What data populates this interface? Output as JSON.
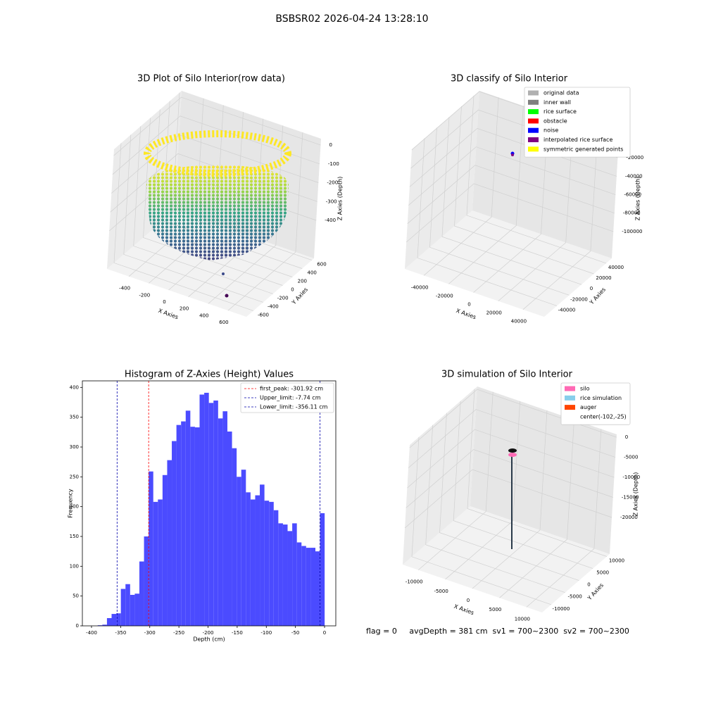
{
  "title": "BSBSR02 2026-04-24 13:28:10",
  "chart_data": [
    {
      "type": "scatter3d",
      "title": "3D Plot of Silo Interior(row data)",
      "xlabel": "X Axies",
      "ylabel": "Y Axies",
      "zlabel": "Z Axies (Depth)",
      "xlim": [
        -621,
        785
      ],
      "xticks": [
        -400,
        -200,
        0,
        200,
        400,
        600
      ],
      "ylim": [
        -744,
        643
      ],
      "yticks": [
        -600,
        -400,
        -200,
        0,
        200,
        400,
        600
      ],
      "zlim": [
        -602,
        34
      ],
      "zticks": [
        -400,
        -300,
        -200,
        -100,
        0
      ]
    },
    {
      "type": "scatter3d",
      "title": "3D classify of Silo Interior",
      "xlabel": "X Axies",
      "ylabel": "Y Axies",
      "zlabel": "Z Axies (Depth)",
      "xlim": [
        -55400,
        57100
      ],
      "xticks": [
        -40000,
        -20000,
        0,
        20000,
        40000
      ],
      "ylim": [
        -60570,
        49130
      ],
      "yticks": [
        -40000,
        -20000,
        0,
        20000,
        40000
      ],
      "zlim": [
        -129100,
        800
      ],
      "zticks": [
        -100000,
        -80000,
        -60000,
        -40000,
        -20000,
        0
      ],
      "legend": [
        {
          "name": "original data",
          "color": "#b0b0b0"
        },
        {
          "name": "inner wall",
          "color": "#808080"
        },
        {
          "name": "rice surface",
          "color": "#00ff00"
        },
        {
          "name": "obstacle",
          "color": "#ff0000"
        },
        {
          "name": "noise",
          "color": "#0000ff"
        },
        {
          "name": "interpolated rice surface",
          "color": "#800080"
        },
        {
          "name": "symmetric generated points",
          "color": "#ffff00"
        }
      ]
    },
    {
      "type": "histogram",
      "title": "Histogram of Z-Axies (Height) Values",
      "xlabel": "Depth (cm)",
      "ylabel": "Frequency",
      "color": "#4b4bff",
      "bins": [
        -389.4,
        -381.45,
        -373.5,
        -365.55,
        -357.6,
        -349.65,
        -341.7,
        -333.75,
        -325.8,
        -317.85,
        -309.9,
        -301.95,
        -294.0,
        -286.05,
        -278.1,
        -270.15,
        -262.2,
        -254.25,
        -246.3,
        -238.35,
        -230.4,
        -222.45,
        -214.5,
        -206.55,
        -198.6,
        -190.65,
        -182.7,
        -174.75,
        -166.8,
        -158.85,
        -150.9,
        -142.95,
        -135.0,
        -127.05,
        -119.1,
        -111.15,
        -103.2,
        -95.25,
        -87.3,
        -79.35,
        -71.4,
        -63.45,
        -55.5,
        -47.55,
        -39.6,
        -31.65,
        -23.7,
        -15.75,
        -7.8,
        0.15
      ],
      "counts": [
        1,
        2,
        13,
        20,
        21,
        62,
        70,
        52,
        54,
        108,
        150,
        259,
        208,
        212,
        253,
        278,
        310,
        337,
        343,
        361,
        334,
        333,
        388,
        391,
        374,
        378,
        348,
        360,
        326,
        298,
        250,
        262,
        224,
        212,
        219,
        237,
        210,
        208,
        194,
        172,
        170,
        159,
        172,
        140,
        134,
        131,
        131,
        125,
        189
      ],
      "xlim": [
        -415.7,
        19.3
      ],
      "xticks": [
        -400,
        -350,
        -300,
        -250,
        -200,
        -150,
        -100,
        -50,
        0
      ],
      "ylim": [
        0,
        411
      ],
      "yticks": [
        0,
        50,
        100,
        150,
        200,
        250,
        300,
        350,
        400
      ],
      "vlines": [
        {
          "name": "first_peak: -301.92 cm",
          "x": -301.92,
          "color": "#ff0000"
        },
        {
          "name": "Upper_limit: -7.74 cm",
          "x": -7.74,
          "color": "#0000aa"
        },
        {
          "name": "Lower_limit: -356.11 cm",
          "x": -356.11,
          "color": "#0000aa"
        }
      ]
    },
    {
      "type": "surface3d",
      "title": "3D simulation of Silo Interior",
      "xlabel": "X Axies",
      "ylabel": "Y Axies",
      "zlabel": "Z Axies (Depth)",
      "xlim": [
        -12890,
        12880
      ],
      "xticks": [
        -10000,
        -5000,
        0,
        5000,
        10000
      ],
      "ylim": [
        -13280,
        11020
      ],
      "yticks": [
        -10000,
        -5000,
        0,
        5000,
        10000
      ],
      "zlim": [
        -29130,
        720
      ],
      "zticks": [
        -20000,
        -15000,
        -10000,
        -5000,
        0
      ],
      "legend": [
        {
          "name": "silo",
          "color": "#ff69b4"
        },
        {
          "name": "rice simulation",
          "color": "#87ceeb"
        },
        {
          "name": "auger",
          "color": "#ff4500"
        },
        {
          "name": "center(-102,-25)",
          "color": "#ffffff"
        }
      ]
    }
  ],
  "footer": "flag = 0     avgDepth = 381 cm  sv1 = 700~2300  sv2 = 700~2300"
}
